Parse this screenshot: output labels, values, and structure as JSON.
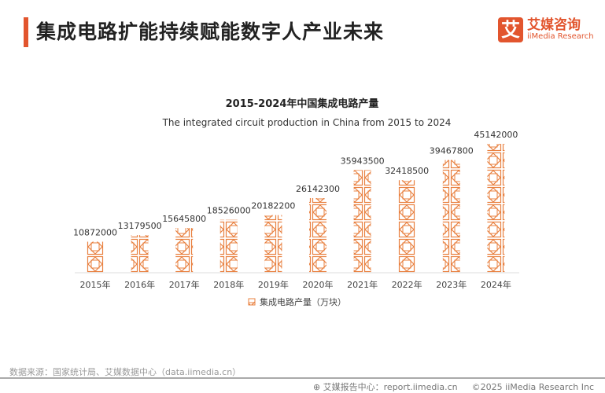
{
  "header": {
    "title": "集成电路扩能持续赋能数字人产业未来"
  },
  "logo": {
    "icon_text": "艾",
    "cn": "艾媒咨询",
    "en": "iiMedia Research"
  },
  "chart_data": {
    "type": "bar",
    "title": "2015-2024年中国集成电路产量",
    "subtitle": "The integrated circuit production in China from 2015 to 2024",
    "categories": [
      "2015年",
      "2016年",
      "2017年",
      "2018年",
      "2019年",
      "2020年",
      "2021年",
      "2022年",
      "2023年",
      "2024年"
    ],
    "series": [
      {
        "name": "集成电路产量（万块）",
        "values": [
          10872000,
          13179500,
          15645800,
          18526000,
          20182200,
          26142300,
          35943500,
          32418500,
          39467800,
          45142000
        ]
      }
    ],
    "legend": "bottom-center",
    "grid": false,
    "color": "#e8803f"
  },
  "footer": {
    "source": "数据来源：国家统计局、艾媒数据中心（data.iimedia.cn）",
    "report": "艾媒报告中心：report.iimedia.cn",
    "copyright": "©2025  iiMedia Research  Inc"
  }
}
